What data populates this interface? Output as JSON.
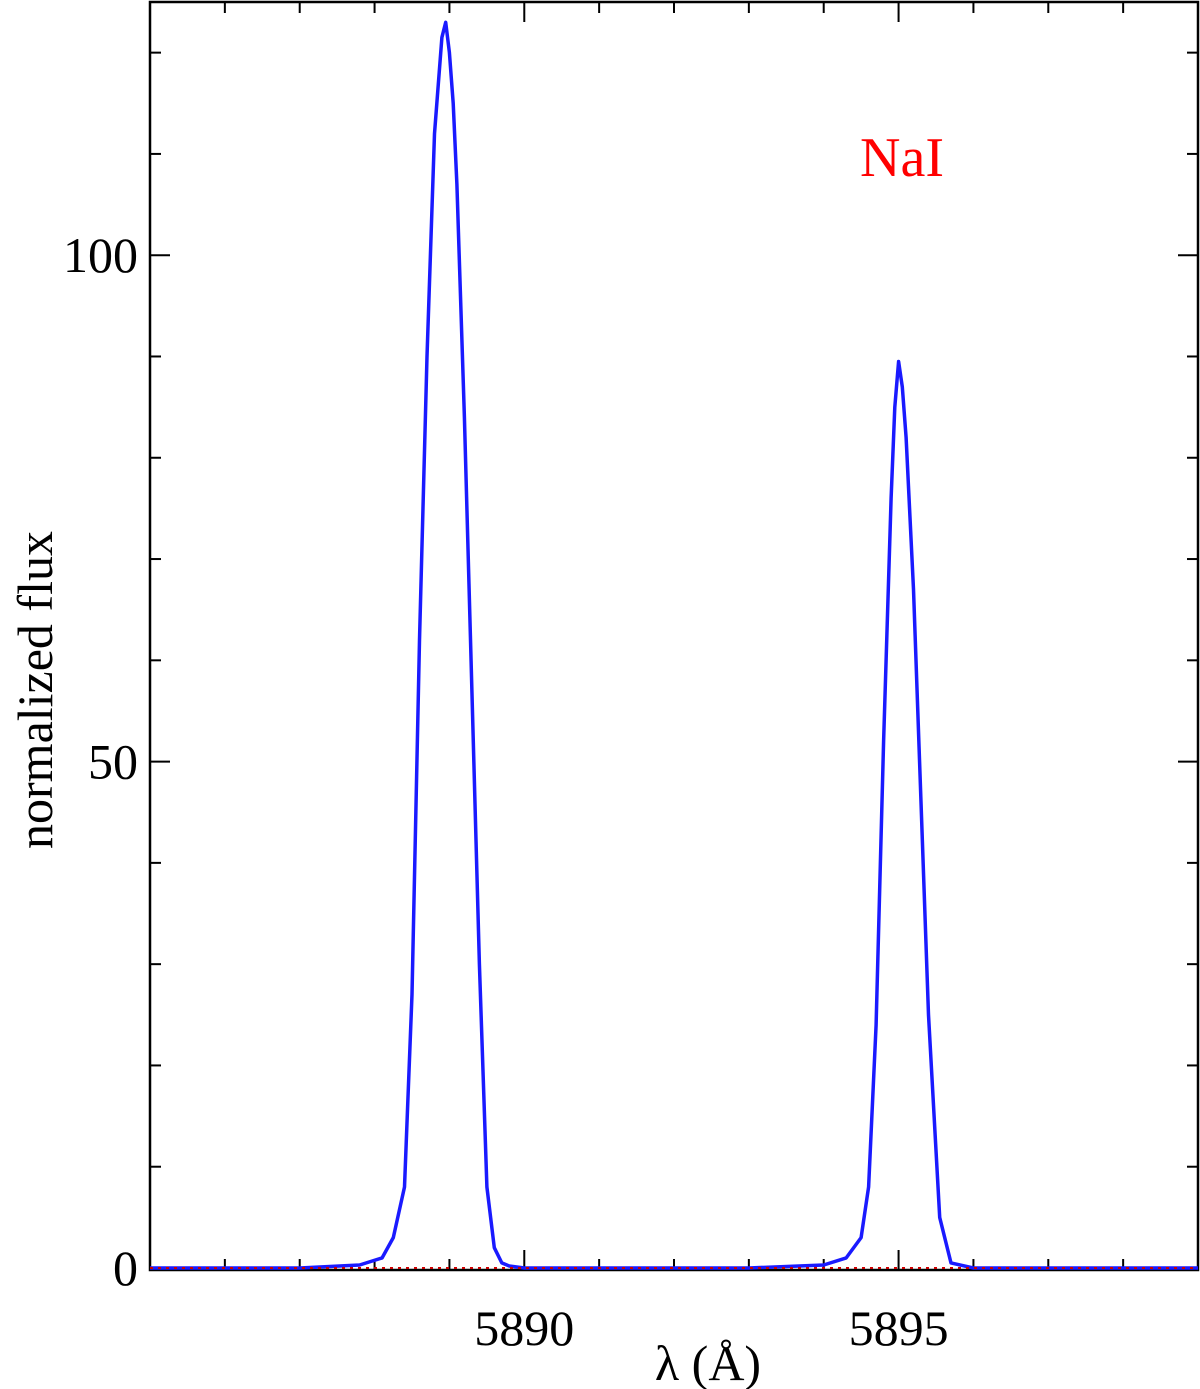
{
  "chart_data": {
    "type": "line",
    "title": "",
    "xlabel": "λ (Å)",
    "ylabel": "normalized flux",
    "xlim": [
      5885.0,
      5899.0
    ],
    "ylim": [
      0,
      125
    ],
    "x_ticks_major": [
      5890,
      5895
    ],
    "x_ticks_minor": [
      5886,
      5887,
      5888,
      5889,
      5891,
      5892,
      5893,
      5894,
      5896,
      5897,
      5898
    ],
    "y_ticks_major": [
      0,
      50,
      100
    ],
    "y_ticks_minor": [
      10,
      20,
      30,
      40,
      60,
      70,
      80,
      90,
      110,
      120
    ],
    "grid": false,
    "annotation": "NaI",
    "colors": {
      "series": "#1a1aff",
      "baseline": "#cc0000",
      "annotation": "#ff0000",
      "axes": "#000000"
    },
    "series": [
      {
        "style": "solid",
        "x": [
          5885.0,
          5886.0,
          5887.0,
          5887.8,
          5888.1,
          5888.25,
          5888.4,
          5888.5,
          5888.6,
          5888.7,
          5888.8,
          5888.9,
          5888.95,
          5889.0,
          5889.05,
          5889.1,
          5889.2,
          5889.3,
          5889.4,
          5889.5,
          5889.6,
          5889.7,
          5889.8,
          5890.0,
          5891.0,
          5892.0,
          5893.0,
          5894.0,
          5894.3,
          5894.5,
          5894.6,
          5894.7,
          5894.8,
          5894.9,
          5894.95,
          5895.0,
          5895.05,
          5895.1,
          5895.2,
          5895.3,
          5895.4,
          5895.55,
          5895.7,
          5896.0,
          5897.0,
          5898.0,
          5899.0
        ],
        "y": [
          0,
          0,
          0,
          0.3,
          1.0,
          3.0,
          8.0,
          27.0,
          62.0,
          90.0,
          112.0,
          121.5,
          123.0,
          120.0,
          115.0,
          107.0,
          84.0,
          57.0,
          30.0,
          8.0,
          2.0,
          0.5,
          0.2,
          0,
          0,
          0,
          0,
          0.3,
          1.0,
          3.0,
          8.0,
          24.0,
          52.0,
          76.0,
          85.0,
          89.5,
          87.0,
          82.0,
          67.0,
          46.0,
          25.0,
          5.0,
          0.5,
          0,
          0,
          0,
          0
        ]
      },
      {
        "style": "dotted",
        "x": [
          5885.0,
          5899.0
        ],
        "y": [
          0,
          0
        ]
      }
    ]
  }
}
